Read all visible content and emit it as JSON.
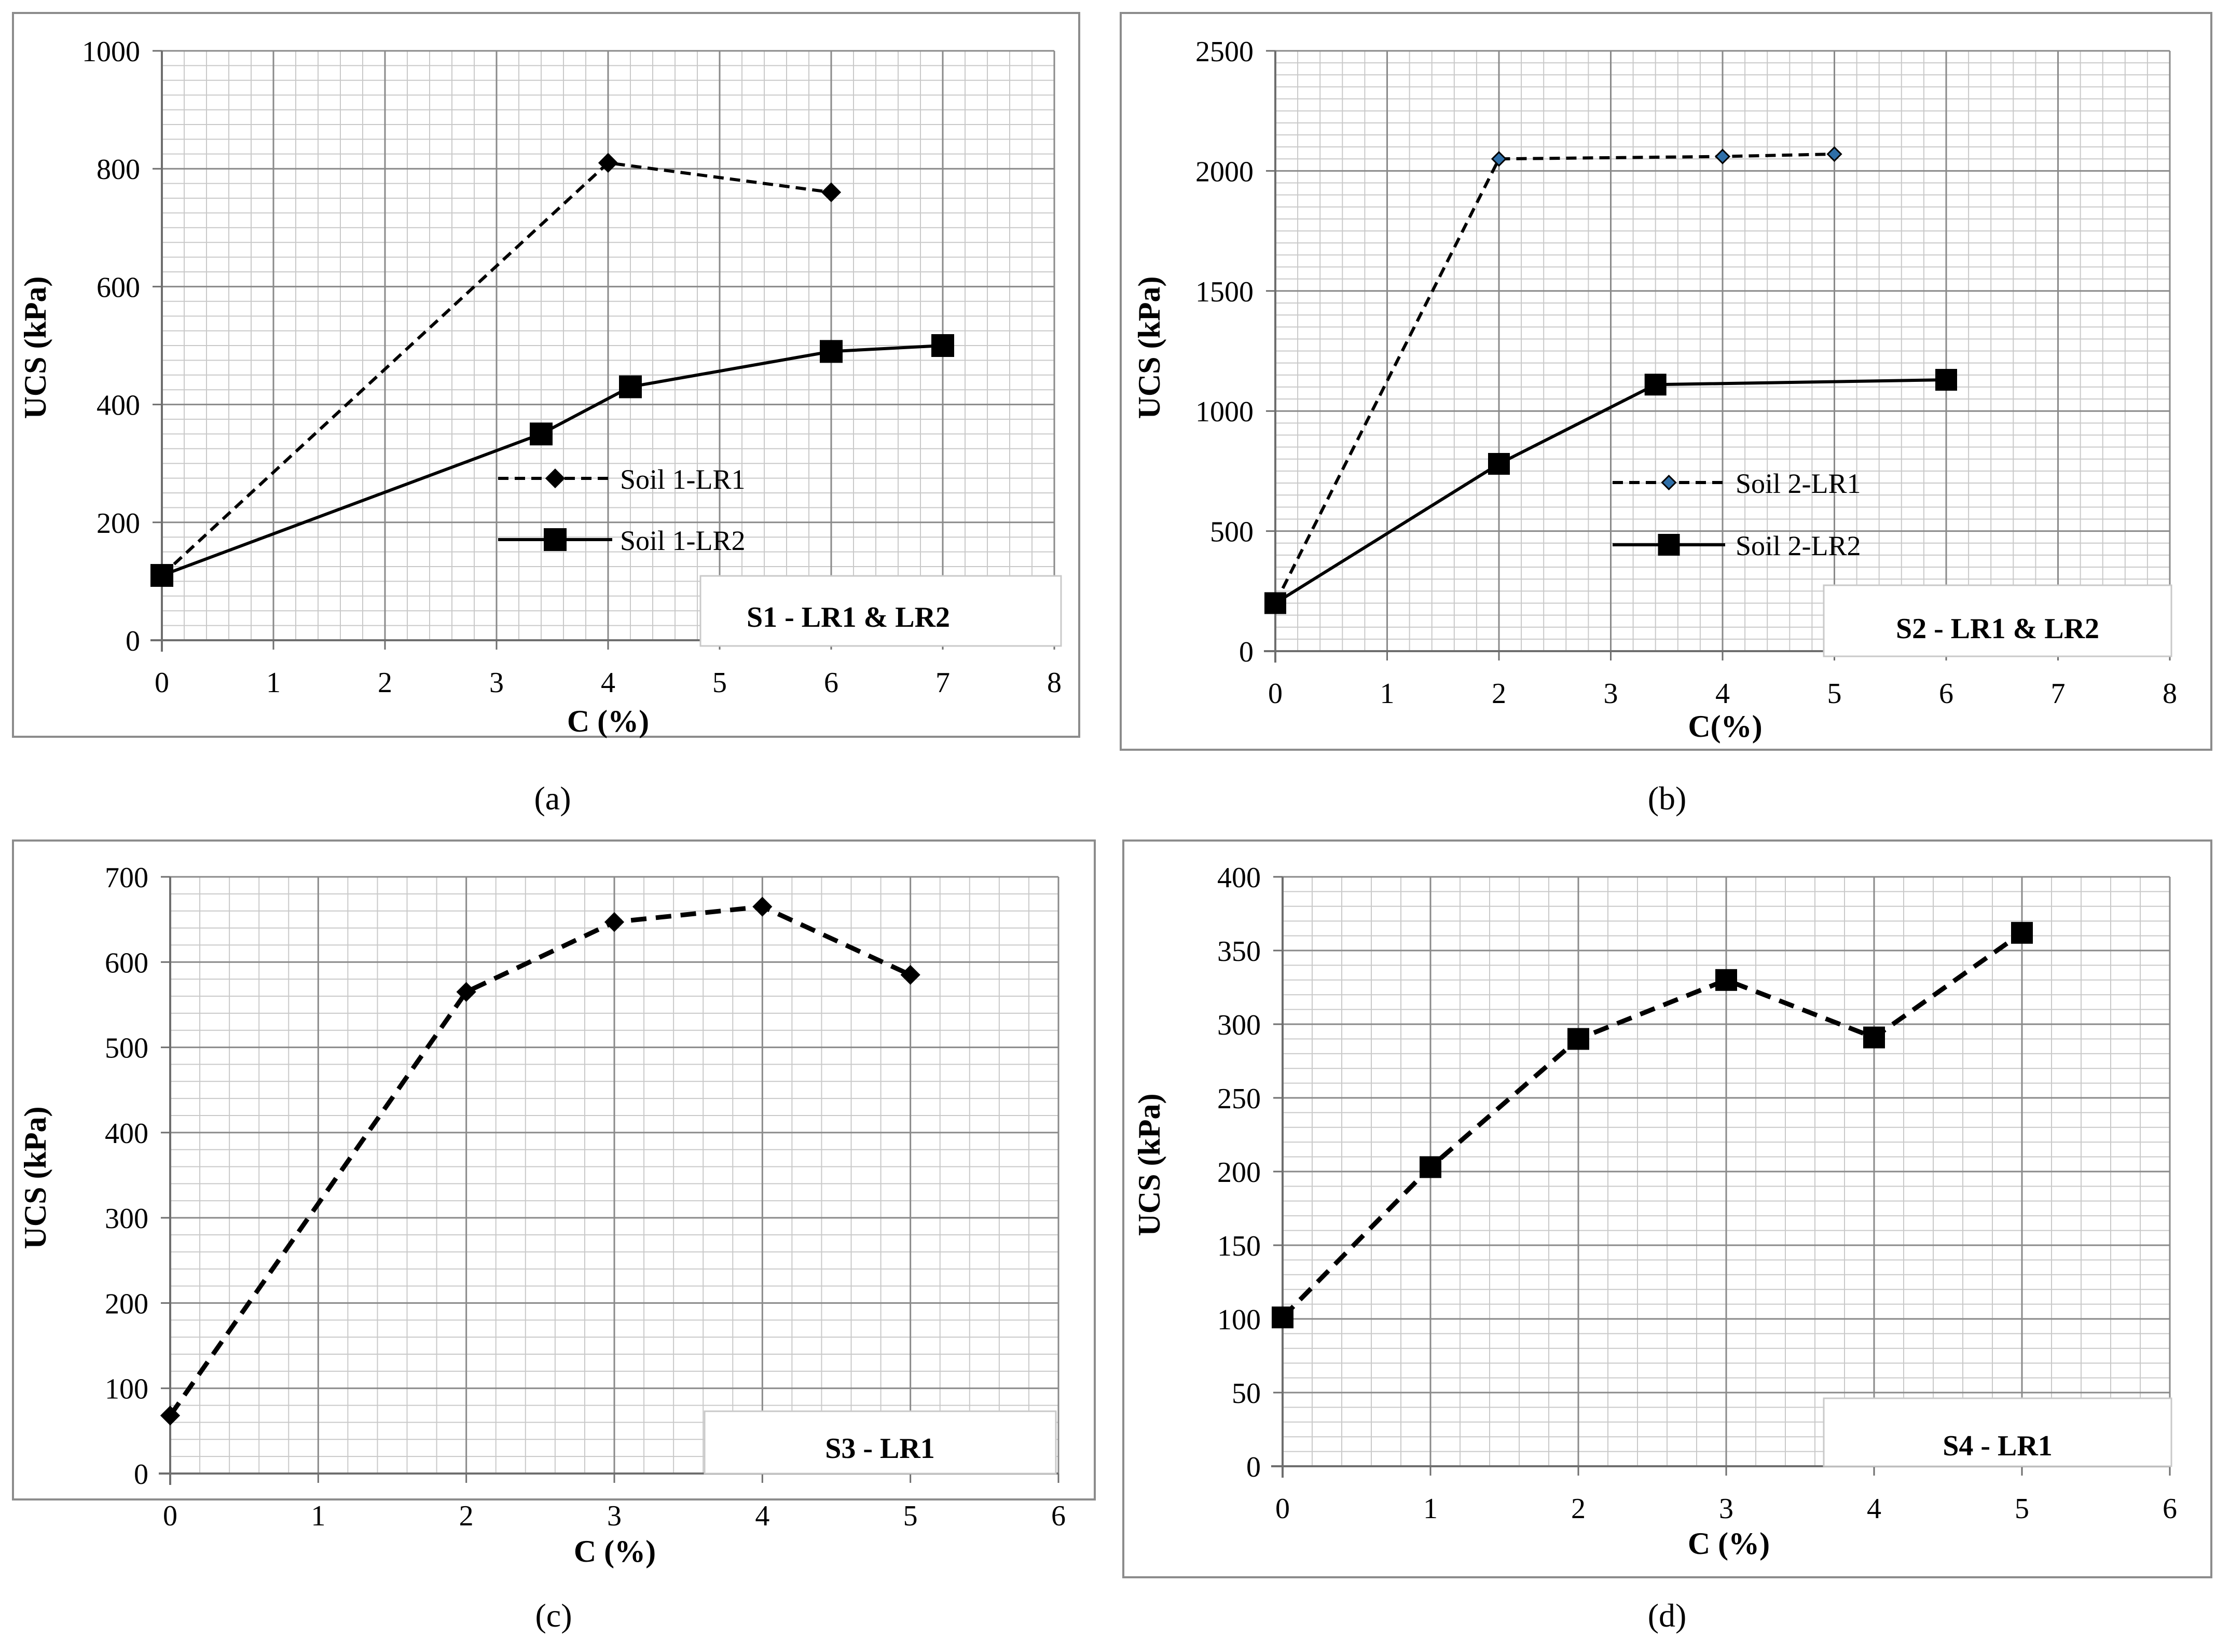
{
  "chart_data": [
    {
      "type": "line",
      "panel_label": "(a)",
      "title": "S1 - LR1 & LR2",
      "xlabel": "C (%)",
      "ylabel": "UCS (kPa)",
      "xlim": [
        0,
        8
      ],
      "ylim": [
        0,
        1000
      ],
      "xticks": [
        0,
        1,
        2,
        3,
        4,
        5,
        6,
        7,
        8
      ],
      "yticks": [
        0,
        200,
        400,
        600,
        800,
        1000
      ],
      "x_minor_step": 0.2,
      "y_minor_step": 25,
      "series": [
        {
          "name": "Soil 1-LR1",
          "x": [
            0,
            4,
            6
          ],
          "values": [
            110,
            810,
            760
          ],
          "line_style": "dashed",
          "marker": "diamond",
          "marker_color": "#000000"
        },
        {
          "name": "Soil 1-LR2",
          "x": [
            0,
            3.4,
            4.2,
            6,
            7
          ],
          "values": [
            110,
            350,
            430,
            490,
            500
          ],
          "line_style": "solid",
          "marker": "square",
          "marker_color": "#000000"
        }
      ]
    },
    {
      "type": "line",
      "panel_label": "(b)",
      "title": "S2 - LR1 & LR2",
      "xlabel": "C(%)",
      "ylabel": "UCS (kPa)",
      "xlim": [
        0,
        8
      ],
      "ylim": [
        0,
        2500
      ],
      "xticks": [
        0,
        1,
        2,
        3,
        4,
        5,
        6,
        7,
        8
      ],
      "yticks": [
        0,
        500,
        1000,
        1500,
        2000,
        2500
      ],
      "x_minor_step": 0.2,
      "y_minor_step": 50,
      "series": [
        {
          "name": "Soil 2-LR1",
          "x": [
            0,
            2,
            4,
            5
          ],
          "values": [
            200,
            2050,
            2060,
            2070
          ],
          "line_style": "dashed",
          "marker": "diamond",
          "marker_color": "#2f6fa8"
        },
        {
          "name": "Soil 2-LR2",
          "x": [
            0,
            2,
            3.4,
            6
          ],
          "values": [
            200,
            780,
            1110,
            1130
          ],
          "line_style": "solid",
          "marker": "square",
          "marker_color": "#000000"
        }
      ]
    },
    {
      "type": "line",
      "panel_label": "(c)",
      "title": "S3 - LR1",
      "xlabel": "C (%)",
      "ylabel": "UCS  (kPa)",
      "xlim": [
        0,
        6
      ],
      "ylim": [
        0,
        700
      ],
      "xticks": [
        0,
        1,
        2,
        3,
        4,
        5,
        6
      ],
      "yticks": [
        0,
        100,
        200,
        300,
        400,
        500,
        600,
        700
      ],
      "x_minor_step": 0.2,
      "y_minor_step": 20,
      "series": [
        {
          "name": "S3 - LR1",
          "x": [
            0,
            2,
            3,
            4,
            5
          ],
          "values": [
            68,
            565,
            647,
            665,
            585
          ],
          "line_style": "dashed",
          "marker": "diamond",
          "marker_color": "#000000"
        }
      ]
    },
    {
      "type": "line",
      "panel_label": "(d)",
      "title": "S4 - LR1",
      "xlabel": "C (%)",
      "ylabel": "UCS  (kPa)",
      "xlim": [
        0,
        6
      ],
      "ylim": [
        0,
        400
      ],
      "xticks": [
        0,
        1,
        2,
        3,
        4,
        5,
        6
      ],
      "yticks": [
        0,
        50,
        100,
        150,
        200,
        250,
        300,
        350,
        400
      ],
      "x_minor_step": 0.2,
      "y_minor_step": 10,
      "series": [
        {
          "name": "S4 - LR1",
          "x": [
            0,
            1,
            2,
            3,
            4,
            5
          ],
          "values": [
            101,
            203,
            290,
            330,
            291,
            362
          ],
          "line_style": "dashed",
          "marker": "square",
          "marker_color": "#000000"
        }
      ]
    }
  ]
}
